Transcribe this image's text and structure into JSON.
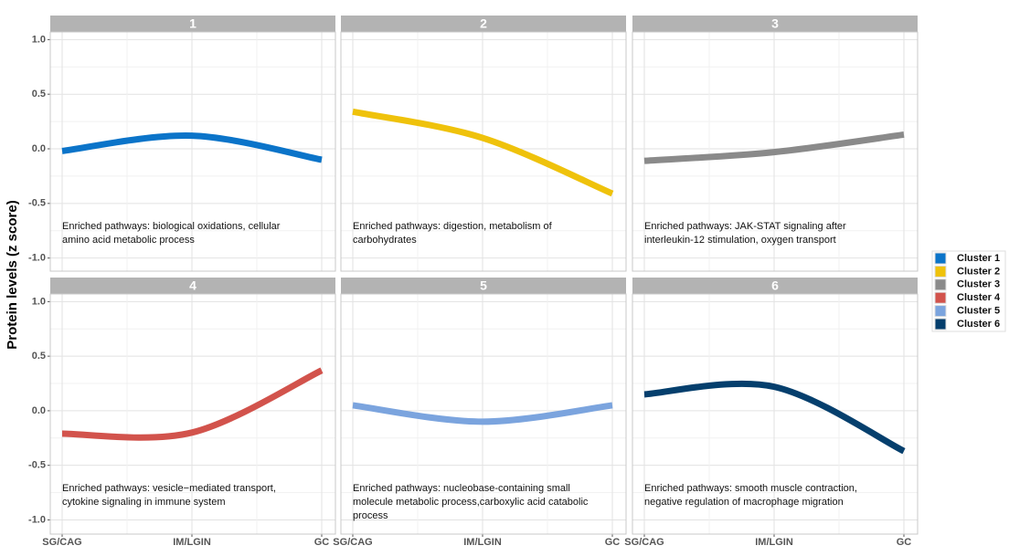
{
  "y_label": "Protein levels (z score)",
  "chart_data": [
    {
      "type": "line",
      "title": "1",
      "categories": [
        "SG/CAG",
        "IM/LGIN",
        "GC"
      ],
      "series": [
        {
          "name": "Cluster 1",
          "color": "#0b74c9",
          "values": [
            -0.02,
            0.12,
            -0.1
          ]
        }
      ],
      "annotation": [
        "Enriched pathways: biological oxidations, cellular",
        "amino acid metabolic process"
      ],
      "ylim": [
        -1.12,
        1.07
      ],
      "yticks": [
        {
          "value": 1,
          "label": "1.0"
        },
        {
          "value": 0.5,
          "label": "0.5"
        },
        {
          "value": 0,
          "label": "0.0"
        },
        {
          "value": -0.5,
          "label": "-0.5"
        },
        {
          "value": -1,
          "label": "-1.0"
        }
      ],
      "grid": true
    },
    {
      "type": "line",
      "title": "2",
      "categories": [
        "SG/CAG",
        "IM/LGIN",
        "GC"
      ],
      "series": [
        {
          "name": "Cluster 2",
          "color": "#efc20b",
          "values": [
            0.34,
            0.1,
            -0.41
          ]
        }
      ],
      "annotation": [
        "Enriched pathways: digestion, metabolism of",
        "carbohydrates"
      ],
      "ylim": [
        -1.12,
        1.07
      ],
      "grid": true
    },
    {
      "type": "line",
      "title": "3",
      "categories": [
        "SG/CAG",
        "IM/LGIN",
        "GC"
      ],
      "series": [
        {
          "name": "Cluster 3",
          "color": "#8a8a8a",
          "values": [
            -0.11,
            -0.03,
            0.13
          ]
        }
      ],
      "annotation": [
        "Enriched pathways: JAK-STAT signaling after",
        "interleukin-12 stimulation, oxygen transport"
      ],
      "ylim": [
        -1.12,
        1.07
      ],
      "grid": true
    },
    {
      "type": "line",
      "title": "4",
      "categories": [
        "SG/CAG",
        "IM/LGIN",
        "GC"
      ],
      "series": [
        {
          "name": "Cluster 4",
          "color": "#d2534c",
          "values": [
            -0.21,
            -0.2,
            0.37
          ]
        }
      ],
      "annotation": [
        "Enriched pathways: vesicle−mediated transport,",
        "cytokine signaling in immune system"
      ],
      "ylim": [
        -1.13,
        1.07
      ],
      "yticks": [
        {
          "value": 1,
          "label": "1.0"
        },
        {
          "value": 0.5,
          "label": "0.5"
        },
        {
          "value": 0,
          "label": "0.0"
        },
        {
          "value": -0.5,
          "label": "-0.5"
        },
        {
          "value": -1,
          "label": "-1.0"
        }
      ],
      "grid": true
    },
    {
      "type": "line",
      "title": "5",
      "categories": [
        "SG/CAG",
        "IM/LGIN",
        "GC"
      ],
      "series": [
        {
          "name": "Cluster 5",
          "color": "#7ba4de",
          "values": [
            0.05,
            -0.1,
            0.05
          ]
        }
      ],
      "annotation": [
        "Enriched pathways: nucleobase-containing small",
        "molecule metabolic process,carboxylic acid catabolic",
        "process"
      ],
      "ylim": [
        -1.13,
        1.07
      ],
      "grid": true
    },
    {
      "type": "line",
      "title": "6",
      "categories": [
        "SG/CAG",
        "IM/LGIN",
        "GC"
      ],
      "series": [
        {
          "name": "Cluster 6",
          "color": "#053f6d",
          "values": [
            0.15,
            0.22,
            -0.37
          ]
        }
      ],
      "annotation": [
        "Enriched pathways: smooth muscle contraction,",
        "negative regulation of macrophage migration"
      ],
      "ylim": [
        -1.13,
        1.07
      ],
      "grid": true
    }
  ]
}
